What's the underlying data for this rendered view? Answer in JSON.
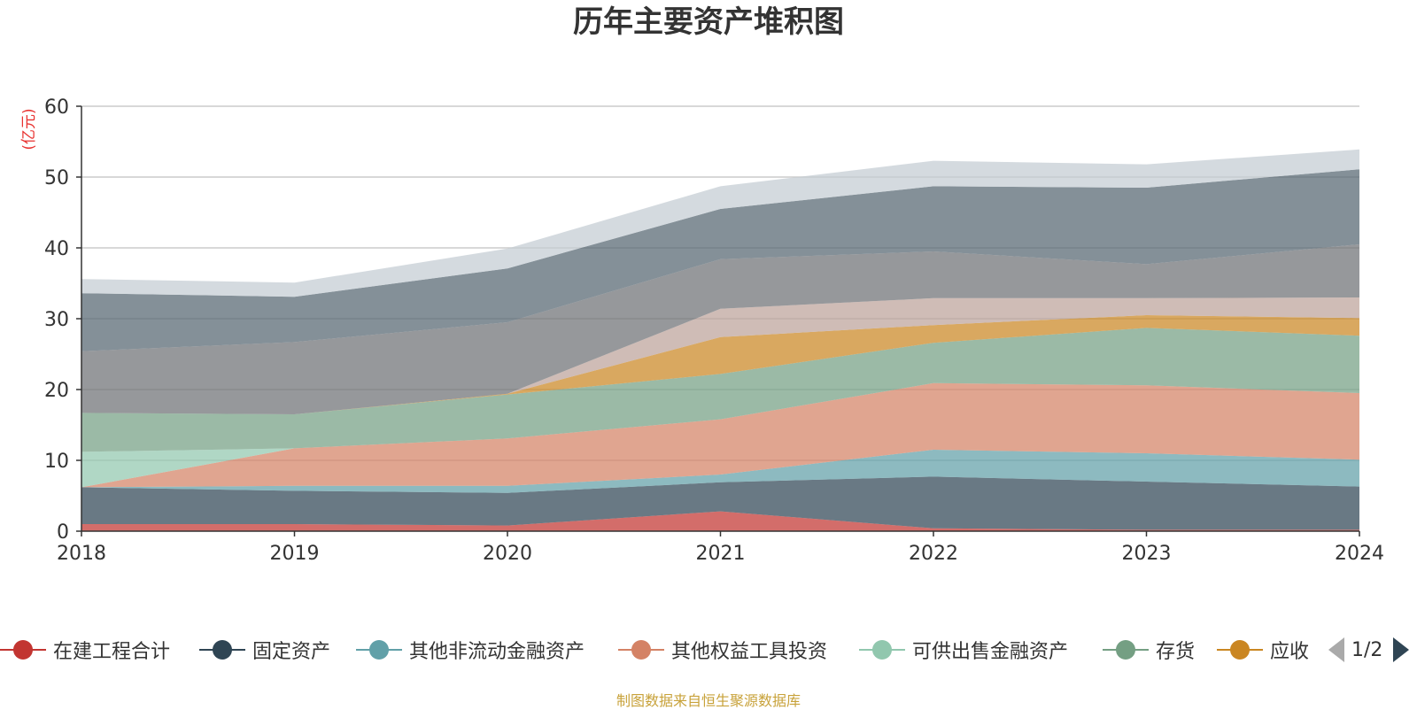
{
  "page": {
    "title": "历年主要资产堆积图",
    "source_note": "制图数据来自恒生聚源数据库"
  },
  "legend": {
    "items": [
      {
        "label": "在建工程合计",
        "color": "#c23531"
      },
      {
        "label": "固定资产",
        "color": "#2f4554"
      },
      {
        "label": "其他非流动金融资产",
        "color": "#61a0a8"
      },
      {
        "label": "其他权益工具投资",
        "color": "#d48265"
      },
      {
        "label": "可供出售金融资产",
        "color": "#91c7ae"
      },
      {
        "label": "存货",
        "color": "#749f83"
      },
      {
        "label": "应收",
        "color": "#ca8622"
      }
    ],
    "pager_text": "1/2"
  },
  "chart_data": {
    "type": "area",
    "stacked": true,
    "title": "历年主要资产堆积图",
    "ylabel": "(亿元)",
    "xlabel": "",
    "x": [
      "2018",
      "2019",
      "2020",
      "2021",
      "2022",
      "2023",
      "2024"
    ],
    "ylim": [
      0,
      60
    ],
    "yticks": [
      0,
      10,
      20,
      30,
      40,
      50,
      60
    ],
    "grid": true,
    "legend_position": "bottom",
    "series": [
      {
        "name": "在建工程合计",
        "color": "#c23531",
        "values": [
          1.0,
          1.0,
          0.8,
          2.8,
          0.4,
          0.2,
          0.2
        ]
      },
      {
        "name": "固定资产",
        "color": "#2f4554",
        "values": [
          5.2,
          4.7,
          4.6,
          4.1,
          7.3,
          6.8,
          6.1
        ]
      },
      {
        "name": "其他非流动金融资产",
        "color": "#61a0a8",
        "values": [
          0,
          0.7,
          1.0,
          1.1,
          3.8,
          4.0,
          3.8
        ]
      },
      {
        "name": "其他权益工具投资",
        "color": "#d48265",
        "values": [
          0,
          5.3,
          6.7,
          7.8,
          9.4,
          9.6,
          9.4
        ]
      },
      {
        "name": "可供出售金融资产",
        "color": "#91c7ae",
        "values": [
          5.0,
          0,
          0,
          0,
          0,
          0,
          0
        ]
      },
      {
        "name": "存货",
        "color": "#749f83",
        "values": [
          5.5,
          4.8,
          6.2,
          6.4,
          5.7,
          8.1,
          8.1
        ]
      },
      {
        "name": "应收",
        "color": "#ca8622",
        "values": [
          0,
          0,
          0.1,
          5.2,
          2.5,
          1.8,
          2.5
        ]
      },
      {
        "color": "#bda29a",
        "values": [
          0,
          0,
          0,
          4.0,
          3.8,
          2.4,
          2.9
        ]
      },
      {
        "color": "#6e7074",
        "values": [
          8.7,
          10.2,
          10.1,
          7.0,
          6.6,
          4.8,
          7.5
        ]
      },
      {
        "color": "#546570",
        "values": [
          8.2,
          6.4,
          7.6,
          7.1,
          9.2,
          10.8,
          10.6
        ]
      },
      {
        "color": "#c4ccd3",
        "values": [
          2.0,
          2.0,
          2.8,
          3.2,
          3.6,
          3.3,
          2.8
        ]
      }
    ]
  }
}
